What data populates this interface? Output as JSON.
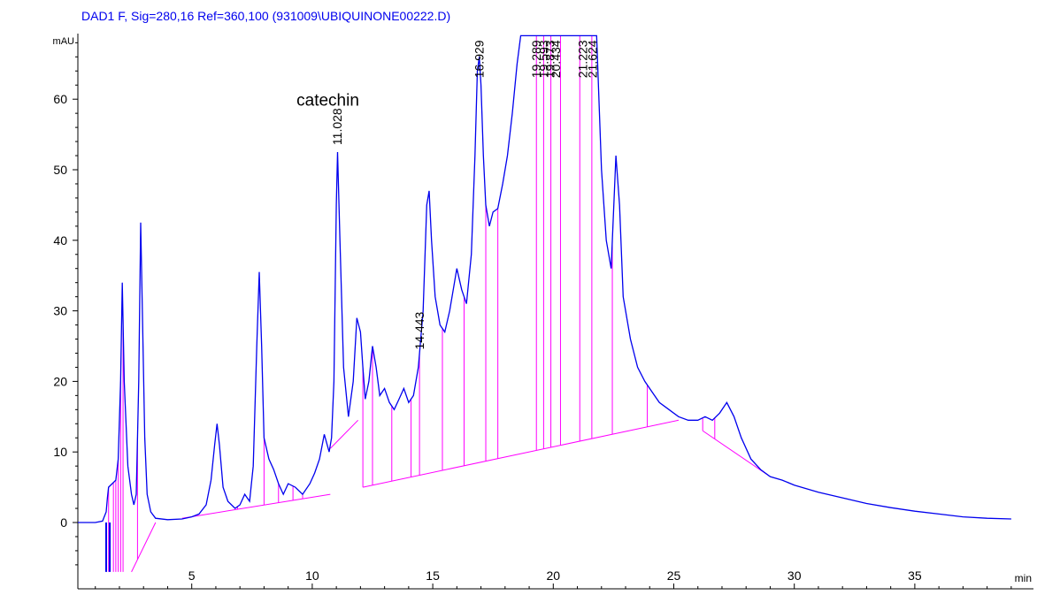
{
  "header": "DAD1 F, Sig=280,16 Ref=360,100 (931009\\UBIQUINONE00222.D)",
  "colors": {
    "trace": "#0000ee",
    "baseline": "#ff00ff",
    "header": "#0000ee",
    "axis": "#000000"
  },
  "chart_data": {
    "type": "line",
    "ylabel": "mAU",
    "xlabel": "min",
    "xlim": [
      0,
      39
    ],
    "ylim": [
      -7,
      69
    ],
    "grid": false,
    "x_ticks": [
      5,
      10,
      15,
      20,
      25,
      30,
      35
    ],
    "y_ticks": [
      0,
      10,
      20,
      30,
      40,
      50,
      60
    ],
    "annotations": [
      {
        "text": "catechin",
        "x": 11.0,
        "y": 63
      }
    ],
    "peak_labels": [
      {
        "text": "11.028",
        "x": 11.028,
        "y": 53.5
      },
      {
        "text": "14.443",
        "x": 14.443,
        "y": 24.5
      },
      {
        "text": "16.929",
        "x": 16.93,
        "y": 63
      },
      {
        "text": "19.289",
        "x": 19.289,
        "y": 63
      },
      {
        "text": "19.593",
        "x": 19.6,
        "y": 63
      },
      {
        "text": "19.873",
        "x": 19.87,
        "y": 63
      },
      {
        "text": "20.434",
        "x": 20.1,
        "y": 63
      },
      {
        "text": "21.223",
        "x": 21.22,
        "y": 63
      },
      {
        "text": "21.624",
        "x": 21.62,
        "y": 63
      }
    ],
    "series": [
      {
        "type": "line",
        "values_xy": [
          [
            0.0,
            0.0
          ],
          [
            1.0,
            0.0
          ],
          [
            1.3,
            0.2
          ],
          [
            1.45,
            1.5
          ],
          [
            1.5,
            3.5
          ],
          [
            1.55,
            5.0
          ],
          [
            1.7,
            5.5
          ],
          [
            1.85,
            6.0
          ],
          [
            1.95,
            9.0
          ],
          [
            2.05,
            20.0
          ],
          [
            2.12,
            34.0
          ],
          [
            2.2,
            20.0
          ],
          [
            2.35,
            8.0
          ],
          [
            2.5,
            4.0
          ],
          [
            2.6,
            2.5
          ],
          [
            2.7,
            4.0
          ],
          [
            2.8,
            20.0
          ],
          [
            2.88,
            42.5
          ],
          [
            2.95,
            30.0
          ],
          [
            3.05,
            12.0
          ],
          [
            3.15,
            4.0
          ],
          [
            3.3,
            1.5
          ],
          [
            3.5,
            0.6
          ],
          [
            4.0,
            0.4
          ],
          [
            4.6,
            0.5
          ],
          [
            5.0,
            0.8
          ],
          [
            5.3,
            1.2
          ],
          [
            5.6,
            2.5
          ],
          [
            5.8,
            6.0
          ],
          [
            5.95,
            11.0
          ],
          [
            6.05,
            14.0
          ],
          [
            6.15,
            11.0
          ],
          [
            6.3,
            5.0
          ],
          [
            6.5,
            3.0
          ],
          [
            6.8,
            2.0
          ],
          [
            7.0,
            2.5
          ],
          [
            7.2,
            4.0
          ],
          [
            7.4,
            3.0
          ],
          [
            7.55,
            8.0
          ],
          [
            7.7,
            25.0
          ],
          [
            7.8,
            35.5
          ],
          [
            7.9,
            25.0
          ],
          [
            8.0,
            12.0
          ],
          [
            8.2,
            9.0
          ],
          [
            8.4,
            7.5
          ],
          [
            8.6,
            5.5
          ],
          [
            8.8,
            4.0
          ],
          [
            9.0,
            5.5
          ],
          [
            9.3,
            5.0
          ],
          [
            9.6,
            4.0
          ],
          [
            9.9,
            5.5
          ],
          [
            10.1,
            7.0
          ],
          [
            10.3,
            9.0
          ],
          [
            10.5,
            12.5
          ],
          [
            10.7,
            10.0
          ],
          [
            10.8,
            12.0
          ],
          [
            10.9,
            20.0
          ],
          [
            11.0,
            45.0
          ],
          [
            11.05,
            52.5
          ],
          [
            11.15,
            40.0
          ],
          [
            11.3,
            22.0
          ],
          [
            11.5,
            15.0
          ],
          [
            11.7,
            20.0
          ],
          [
            11.85,
            29.0
          ],
          [
            12.0,
            27.0
          ],
          [
            12.1,
            22.0
          ],
          [
            12.2,
            17.5
          ],
          [
            12.35,
            20.0
          ],
          [
            12.5,
            25.0
          ],
          [
            12.65,
            22.0
          ],
          [
            12.8,
            18.0
          ],
          [
            13.0,
            19.0
          ],
          [
            13.2,
            17.0
          ],
          [
            13.4,
            16.0
          ],
          [
            13.6,
            17.5
          ],
          [
            13.8,
            19.0
          ],
          [
            14.0,
            17.0
          ],
          [
            14.2,
            18.0
          ],
          [
            14.4,
            22.0
          ],
          [
            14.6,
            30.0
          ],
          [
            14.75,
            45.0
          ],
          [
            14.85,
            47.0
          ],
          [
            14.95,
            40.0
          ],
          [
            15.1,
            32.0
          ],
          [
            15.3,
            28.0
          ],
          [
            15.5,
            27.0
          ],
          [
            15.7,
            30.0
          ],
          [
            15.9,
            34.0
          ],
          [
            16.0,
            36.0
          ],
          [
            16.2,
            33.0
          ],
          [
            16.4,
            31.0
          ],
          [
            16.6,
            38.0
          ],
          [
            16.75,
            52.0
          ],
          [
            16.85,
            64.0
          ],
          [
            16.93,
            66.0
          ],
          [
            17.0,
            62.0
          ],
          [
            17.1,
            52.0
          ],
          [
            17.2,
            45.0
          ],
          [
            17.35,
            42.0
          ],
          [
            17.5,
            44.0
          ],
          [
            17.7,
            44.5
          ],
          [
            17.9,
            48.0
          ],
          [
            18.1,
            52.0
          ],
          [
            18.3,
            58.0
          ],
          [
            18.5,
            65.0
          ],
          [
            18.65,
            69.0
          ],
          [
            21.8,
            69.0
          ],
          [
            22.0,
            50.0
          ],
          [
            22.2,
            40.0
          ],
          [
            22.4,
            36.0
          ],
          [
            22.6,
            52.0
          ],
          [
            22.75,
            45.0
          ],
          [
            22.9,
            32.0
          ],
          [
            23.2,
            26.0
          ],
          [
            23.5,
            22.0
          ],
          [
            23.8,
            20.0
          ],
          [
            24.1,
            18.5
          ],
          [
            24.4,
            17.0
          ],
          [
            24.8,
            16.0
          ],
          [
            25.2,
            15.0
          ],
          [
            25.6,
            14.5
          ],
          [
            26.0,
            14.5
          ],
          [
            26.3,
            15.0
          ],
          [
            26.6,
            14.5
          ],
          [
            26.9,
            15.5
          ],
          [
            27.2,
            17.0
          ],
          [
            27.5,
            15.0
          ],
          [
            27.8,
            12.0
          ],
          [
            28.2,
            9.0
          ],
          [
            28.6,
            7.5
          ],
          [
            29.0,
            6.5
          ],
          [
            29.5,
            6.0
          ],
          [
            30.0,
            5.3
          ],
          [
            31.0,
            4.3
          ],
          [
            32.0,
            3.5
          ],
          [
            33.0,
            2.7
          ],
          [
            34.0,
            2.1
          ],
          [
            35.0,
            1.6
          ],
          [
            36.0,
            1.2
          ],
          [
            37.0,
            0.8
          ],
          [
            38.0,
            0.6
          ],
          [
            39.0,
            0.5
          ]
        ]
      }
    ]
  }
}
